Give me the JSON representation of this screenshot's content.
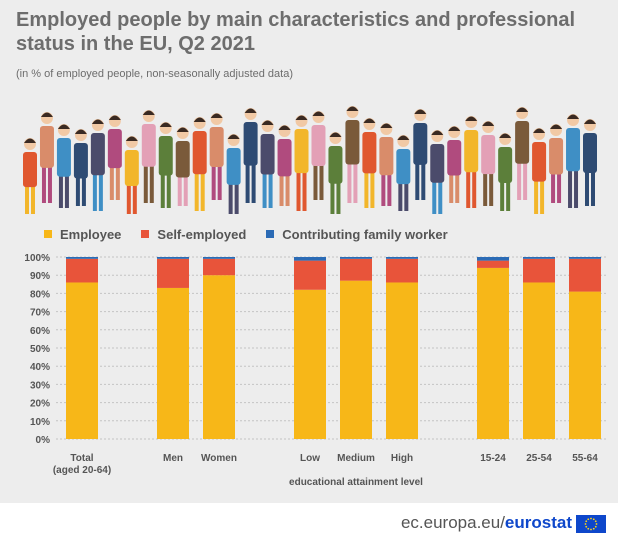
{
  "title": "Employed people by main characteristics and professional status in the EU, Q2 2021",
  "subtitle": "(in % of employed people, non-seasonally adjusted data)",
  "footer": {
    "site": "ec.europa.eu/",
    "brand": "eurostat"
  },
  "colors": {
    "employee": "#f7b718",
    "self_employed": "#e8543a",
    "family_worker": "#2b6bb5"
  },
  "chart_data": {
    "type": "bar",
    "stacked": true,
    "title": "Employed people by main characteristics and professional status in the EU, Q2 2021",
    "ylabel": "",
    "ylim": [
      0,
      100
    ],
    "yticks": [
      "0%",
      "10%",
      "20%",
      "30%",
      "40%",
      "50%",
      "60%",
      "70%",
      "80%",
      "90%",
      "100%"
    ],
    "categories": [
      "Total (aged 20-64)",
      "Men",
      "Women",
      "Low",
      "Medium",
      "High",
      "15-24",
      "25-54",
      "55-64"
    ],
    "category_labels": [
      [
        "Total",
        "(aged 20-64)"
      ],
      [
        "Men"
      ],
      [
        "Women"
      ],
      [
        "Low"
      ],
      [
        "Medium"
      ],
      [
        "High"
      ],
      [
        "15-24"
      ],
      [
        "25-54"
      ],
      [
        "55-64"
      ]
    ],
    "group_label": [
      "educational",
      "attainment level"
    ],
    "series": [
      {
        "name": "Employee",
        "values": [
          86,
          83,
          90,
          82,
          87,
          86,
          94,
          86,
          81
        ]
      },
      {
        "name": "Self-employed",
        "values": [
          13,
          16,
          9,
          16,
          12,
          13,
          4,
          13,
          18
        ]
      },
      {
        "name": "Contributing family worker",
        "values": [
          1,
          1,
          1,
          2,
          1,
          1,
          2,
          1,
          1
        ]
      }
    ],
    "legend_position": "top-left",
    "grid": true
  }
}
